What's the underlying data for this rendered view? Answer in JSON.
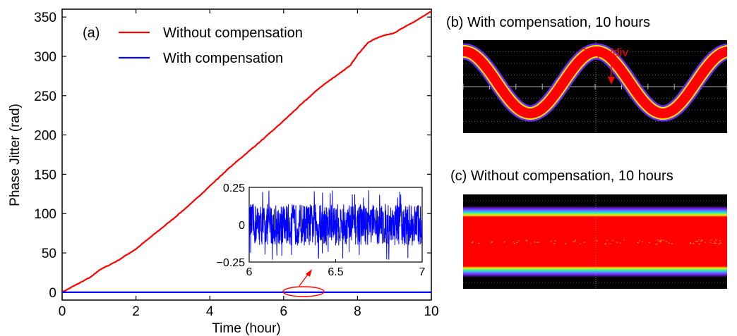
{
  "chart_data": [
    {
      "panel": "(a)",
      "type": "line",
      "xlabel": "Time (hour)",
      "ylabel": "Phase Jitter (rad)",
      "xlim": [
        0,
        10
      ],
      "ylim": [
        -10,
        360
      ],
      "xticks": [
        0,
        2,
        4,
        6,
        8,
        10
      ],
      "yticks": [
        0,
        50,
        100,
        150,
        200,
        250,
        300,
        350
      ],
      "legend_placement": "top-left",
      "series": [
        {
          "name": "Without compensation",
          "color": "#ff0000",
          "x": [
            0,
            0.4,
            0.8,
            1.0,
            1.5,
            2.0,
            2.5,
            3.0,
            3.5,
            4.0,
            4.5,
            5.0,
            5.5,
            6.0,
            6.5,
            7.0,
            7.5,
            7.8,
            8.0,
            8.3,
            8.6,
            9.0,
            9.5,
            10.0
          ],
          "values": [
            0,
            10,
            20,
            28,
            40,
            55,
            74,
            93,
            113,
            135,
            157,
            177,
            197,
            218,
            240,
            261,
            278,
            288,
            302,
            318,
            325,
            330,
            343,
            357
          ]
        },
        {
          "name": "With compensation",
          "color": "#0000ff",
          "x": [
            0,
            10
          ],
          "values": [
            0,
            0
          ]
        }
      ],
      "inset": {
        "type": "line",
        "xlim": [
          6,
          7
        ],
        "ylim": [
          -0.25,
          0.25
        ],
        "xticks": [
          6,
          6.5,
          7
        ],
        "yticks": [
          -0.25,
          0,
          0.25
        ],
        "xtick_labels": [
          "6",
          "6.5",
          "7"
        ],
        "ytick_labels": [
          "−0.25",
          "0",
          "0.25"
        ],
        "series_color": "#0000ff",
        "amplitude": 0.14,
        "peak_amplitude": 0.24
      }
    },
    {
      "panel": "(b)",
      "type": "eye-diagram",
      "title": "(b) With compensation, 10 hours",
      "annotation": "20 ps/div",
      "trace_color": "#ff0000"
    },
    {
      "panel": "(c)",
      "type": "eye-diagram",
      "title": "(c) Without compensation, 10 hours",
      "trace_color": "#ff0000"
    }
  ],
  "panel_a_label": "(a)",
  "colors": {
    "red": "#ff0000",
    "blue": "#0000ff",
    "scope_bg": "#000000"
  }
}
